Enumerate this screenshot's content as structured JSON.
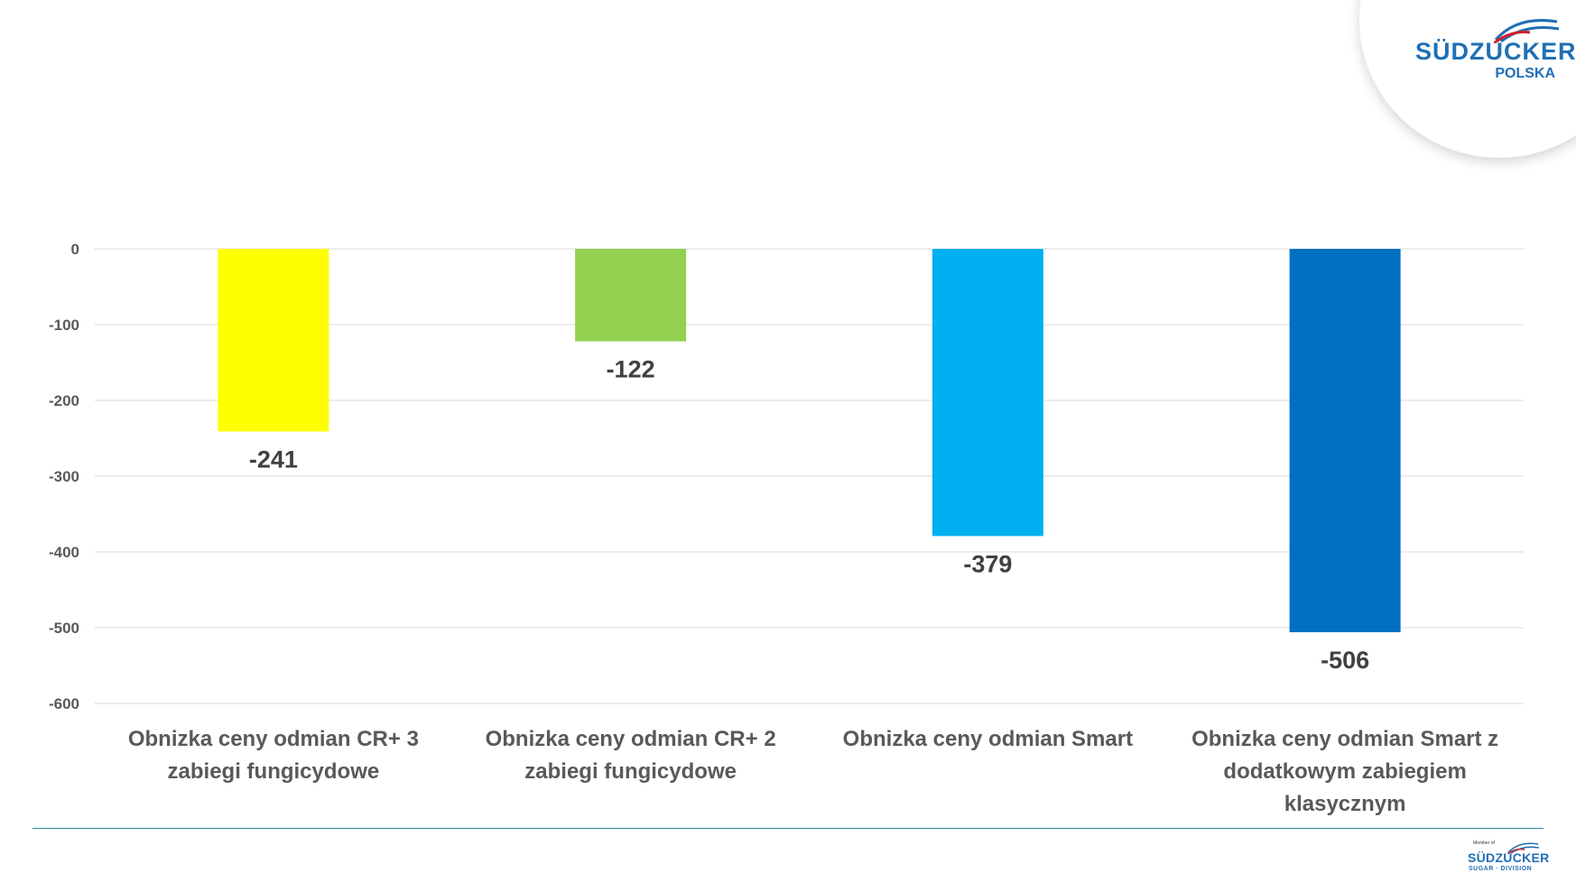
{
  "logo": {
    "brand": "SÜDZUCKER",
    "subtitle": "POLSKA"
  },
  "footer_logo": {
    "member": "Member of",
    "brand": "SÜDZUCKER",
    "subtitle": "SUGAR · DIVISION"
  },
  "colors": {
    "grid": "#d9d9d9",
    "axis_text": "#595959",
    "label_text": "#404040",
    "brand": "#1f6fb5",
    "brand_red": "#d0202e",
    "footer_line": "#2a8a9c"
  },
  "chart_data": {
    "type": "bar",
    "title": "",
    "xlabel": "",
    "ylabel": "",
    "categories": [
      [
        "Obnizka ceny odmian CR+ 3",
        "zabiegi fungicydowe"
      ],
      [
        "Obnizka ceny odmian CR+ 2",
        "zabiegi fungicydowe"
      ],
      [
        "Obnizka ceny odmian Smart"
      ],
      [
        "Obnizka ceny odmian Smart z",
        "dodatkowym zabiegiem",
        "klasycznym"
      ]
    ],
    "values": [
      -241,
      -122,
      -379,
      -506
    ],
    "data_labels": [
      "-241",
      "-122",
      "-379",
      "-506"
    ],
    "bar_colors": [
      "#ffff00",
      "#92d050",
      "#00b0f0",
      "#0070c0"
    ],
    "ylim": [
      -600,
      0
    ],
    "yticks": [
      0,
      -100,
      -200,
      -300,
      -400,
      -500,
      -600
    ],
    "ytick_labels": [
      "0",
      "-100",
      "-200",
      "-300",
      "-400",
      "-500",
      "-600"
    ],
    "grid": true,
    "legend": "none"
  }
}
